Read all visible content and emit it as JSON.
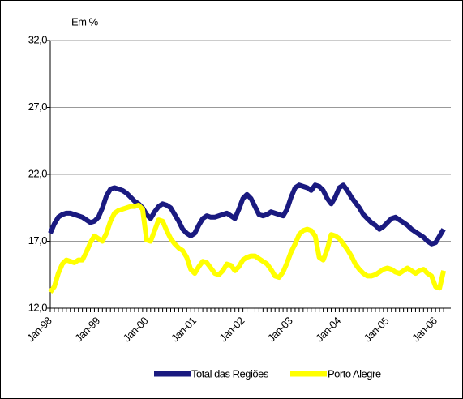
{
  "chart_data": {
    "type": "line",
    "annotations": [
      "Em %"
    ],
    "categories": [
      "Jan-98",
      null,
      null,
      null,
      null,
      null,
      null,
      null,
      null,
      null,
      null,
      null,
      "Jan-99",
      null,
      null,
      null,
      null,
      null,
      null,
      null,
      null,
      null,
      null,
      null,
      "Jan-00",
      null,
      null,
      null,
      null,
      null,
      null,
      null,
      null,
      null,
      null,
      null,
      "Jan-01",
      null,
      null,
      null,
      null,
      null,
      null,
      null,
      null,
      null,
      null,
      null,
      "Jan-02",
      null,
      null,
      null,
      null,
      null,
      null,
      null,
      null,
      null,
      null,
      null,
      "Jan-03",
      null,
      null,
      null,
      null,
      null,
      null,
      null,
      null,
      null,
      null,
      null,
      "Jan-04",
      null,
      null,
      null,
      null,
      null,
      null,
      null,
      null,
      null,
      null,
      null,
      "Jan-05",
      null,
      null,
      null,
      null,
      null,
      null,
      null,
      null,
      null,
      null,
      null,
      "Jan-06",
      null,
      null
    ],
    "series": [
      {
        "name": "Total das Regiões",
        "color": "#1a1a80",
        "values": [
          17.6,
          18.3,
          18.8,
          19.0,
          19.1,
          19.1,
          19.0,
          18.9,
          18.8,
          18.6,
          18.4,
          18.5,
          18.8,
          19.5,
          20.4,
          20.9,
          21.0,
          20.9,
          20.8,
          20.6,
          20.3,
          20.0,
          19.8,
          19.5,
          19.0,
          18.7,
          19.2,
          19.6,
          19.8,
          19.7,
          19.5,
          19.0,
          18.5,
          17.9,
          17.6,
          17.4,
          17.6,
          18.2,
          18.7,
          18.9,
          18.8,
          18.8,
          18.9,
          19.0,
          19.1,
          18.9,
          18.7,
          19.4,
          20.2,
          20.5,
          20.2,
          19.6,
          19.0,
          18.9,
          19.0,
          19.2,
          19.1,
          19.0,
          18.9,
          19.4,
          20.3,
          21.0,
          21.2,
          21.1,
          21.0,
          20.8,
          21.2,
          21.1,
          20.8,
          20.2,
          19.8,
          20.3,
          21.0,
          21.2,
          20.8,
          20.3,
          19.9,
          19.5,
          19.0,
          18.7,
          18.4,
          18.2,
          17.9,
          18.1,
          18.4,
          18.7,
          18.8,
          18.6,
          18.4,
          18.2,
          17.9,
          17.7,
          17.5,
          17.3,
          17.0,
          16.8,
          16.9,
          17.4,
          17.9
        ]
      },
      {
        "name": "Porto Alegre",
        "color": "#ffff00",
        "values": [
          13.2,
          13.6,
          14.6,
          15.3,
          15.6,
          15.5,
          15.4,
          15.6,
          15.6,
          16.2,
          16.9,
          17.4,
          17.2,
          17.0,
          17.6,
          18.5,
          19.1,
          19.3,
          19.4,
          19.5,
          19.6,
          19.6,
          19.7,
          19.4,
          17.1,
          17.0,
          17.8,
          18.6,
          18.5,
          17.8,
          17.2,
          16.8,
          16.5,
          16.3,
          15.8,
          14.9,
          14.6,
          15.1,
          15.5,
          15.4,
          15.0,
          14.6,
          14.5,
          14.8,
          15.3,
          15.2,
          14.8,
          15.1,
          15.6,
          15.8,
          15.9,
          15.9,
          15.7,
          15.5,
          15.3,
          14.9,
          14.4,
          14.3,
          14.7,
          15.4,
          16.2,
          16.8,
          17.5,
          17.8,
          17.9,
          17.8,
          17.4,
          15.8,
          15.6,
          16.4,
          17.5,
          17.4,
          17.2,
          16.8,
          16.4,
          15.9,
          15.3,
          14.9,
          14.6,
          14.4,
          14.4,
          14.5,
          14.7,
          14.9,
          15.0,
          14.9,
          14.7,
          14.6,
          14.8,
          15.0,
          14.8,
          14.6,
          14.8,
          14.9,
          14.6,
          14.4,
          13.6,
          13.5,
          14.8
        ]
      }
    ],
    "ylim": [
      12,
      32
    ],
    "yticks": [
      {
        "value": 12,
        "label": "12,0"
      },
      {
        "value": 17,
        "label": "17,0"
      },
      {
        "value": 22,
        "label": "22,0"
      },
      {
        "value": 27,
        "label": "27,0"
      },
      {
        "value": 32,
        "label": "32,0"
      }
    ],
    "grid": true
  }
}
